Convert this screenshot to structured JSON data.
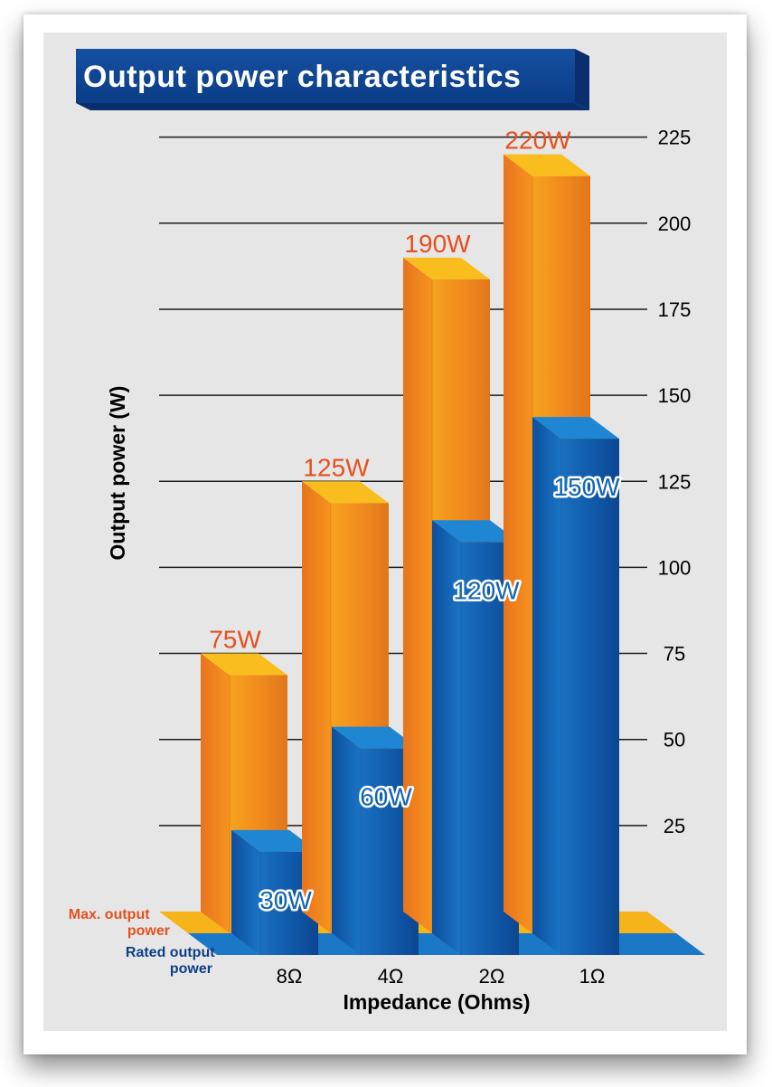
{
  "chart_data": {
    "type": "bar",
    "title": "Output power characteristics",
    "xlabel": "Impedance (Ohms)",
    "ylabel": "Output power (W)",
    "categories": [
      "8Ω",
      "4Ω",
      "2Ω",
      "1Ω"
    ],
    "ylim": [
      0,
      225
    ],
    "yticks": [
      25,
      50,
      75,
      100,
      125,
      150,
      175,
      200,
      225
    ],
    "grid": true,
    "legend_position": "bottom-left",
    "series": [
      {
        "name": "Max. output power",
        "values": [
          75,
          125,
          190,
          220
        ],
        "labels": [
          "75W",
          "125W",
          "190W",
          "220W"
        ],
        "color": "#F08A1E"
      },
      {
        "name": "Rated output power",
        "values": [
          30,
          60,
          120,
          150
        ],
        "labels": [
          "30W",
          "60W",
          "120W",
          "150W"
        ],
        "color": "#1266B5"
      }
    ],
    "colors": {
      "panel_bg": "#E6E6E6",
      "title_bg": "#0C3F8A",
      "max_label": "#E6501E",
      "rated_legend": "#0C3F8A"
    }
  }
}
